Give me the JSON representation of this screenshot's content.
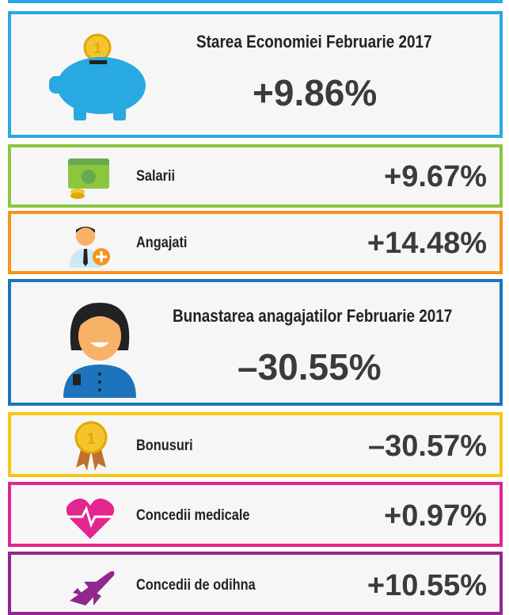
{
  "panels": [
    {
      "title": "Starea Economiei Februarie 2017",
      "value": "+9.86%"
    },
    {
      "title": "Salarii",
      "value": "+9.67%"
    },
    {
      "title": "Angajati",
      "value": "+14.48%"
    },
    {
      "title": "Bunastarea anagajatilor Februarie 2017",
      "value": "–30.55%"
    },
    {
      "title": "Bonusuri",
      "value": "–30.57%"
    },
    {
      "title": "Concedii medicale",
      "value": "+0.97%"
    },
    {
      "title": "Concedii de odihna",
      "value": "+10.55%"
    }
  ]
}
